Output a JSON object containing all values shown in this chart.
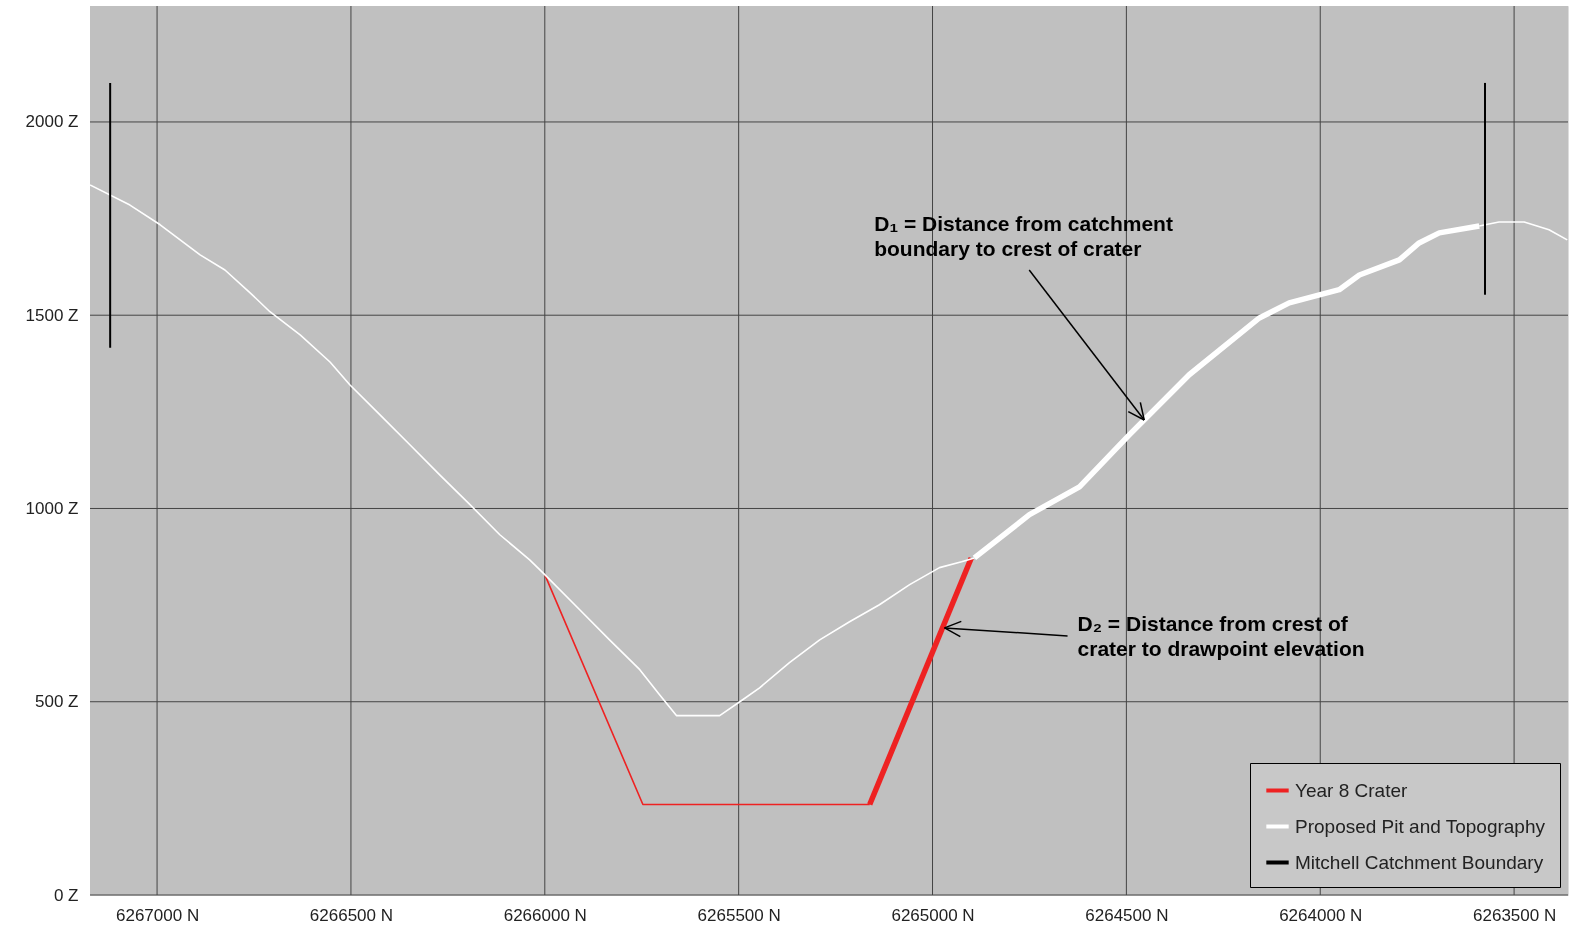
{
  "chart_data": {
    "type": "line",
    "xlim": [
      6267173,
      6263361
    ],
    "ylim": [
      0,
      2300
    ],
    "xticks": [
      {
        "value": 6267000,
        "label": "6267000 N"
      },
      {
        "value": 6266500,
        "label": "6266500 N"
      },
      {
        "value": 6266000,
        "label": "6266000 N"
      },
      {
        "value": 6265500,
        "label": "6265500 N"
      },
      {
        "value": 6265000,
        "label": "6265000 N"
      },
      {
        "value": 6264500,
        "label": "6264500 N"
      },
      {
        "value": 6264000,
        "label": "6264000 N"
      },
      {
        "value": 6263500,
        "label": "6263500 N"
      }
    ],
    "yticks": [
      {
        "value": 0,
        "label": "0 Z"
      },
      {
        "value": 500,
        "label": "500 Z"
      },
      {
        "value": 1000,
        "label": "1000 Z"
      },
      {
        "value": 1500,
        "label": "1500 Z"
      },
      {
        "value": 2000,
        "label": "2000 Z"
      }
    ],
    "grid": true,
    "legend": "bottom right",
    "series": [
      {
        "name": "Year 8 Crater",
        "color": "#ee2222",
        "x": [
          6266000,
          6265747,
          6265162
        ],
        "values": [
          829,
          234,
          234
        ]
      },
      {
        "color": "#ee2222",
        "x": [
          6265162,
          6264900
        ],
        "values": [
          234,
          872
        ]
      },
      {
        "name": "Proposed Pit and Topography",
        "color": "#ffffff",
        "x": [
          6267173,
          6267070,
          6266992,
          6266889,
          6266825,
          6266760,
          6266709,
          6266631,
          6266554,
          6266503,
          6266425,
          6266348,
          6266271,
          6266193,
          6266116,
          6266039,
          6266000,
          6265910,
          6265833,
          6265755,
          6265704,
          6265660,
          6265549,
          6265497,
          6265446,
          6265369,
          6265291,
          6265214,
          6265137,
          6265059,
          6264982,
          6264925,
          6264892,
          6264000,
          6263590,
          6263539,
          6263474,
          6263410,
          6263363
        ],
        "values": [
          1837,
          1785,
          1734,
          1656,
          1617,
          1558,
          1509,
          1449,
          1379,
          1320,
          1242,
          1165,
          1087,
          1010,
          932,
          867,
          829,
          738,
          660,
          583,
          518,
          464,
          464,
          500,
          536,
          601,
          660,
          707,
          751,
          803,
          847,
          862,
          872,
          null,
          1731,
          1741,
          1741,
          1721,
          1695
        ]
      },
      {
        "color": "#ffffff",
        "x": [
          6264892,
          6264750,
          6264621,
          6264492,
          6264338,
          6264157,
          6264080,
          6263951,
          6263899,
          6263796,
          6263745,
          6263693,
          6263590
        ],
        "values": [
          872,
          984,
          1056,
          1191,
          1346,
          1493,
          1532,
          1566,
          1604,
          1643,
          1687,
          1713,
          1731
        ]
      },
      {
        "name": "Mitchell Catchment Boundary",
        "color": "#000000",
        "x": [
          6267121,
          6267121,
          6265000,
          6263575,
          6263575
        ],
        "values": [
          2101,
          1416,
          null,
          2101,
          1553
        ]
      }
    ],
    "annotations": [
      {
        "text": "D₁ = Distance from catchment\nboundary to crest of crater",
        "x": 6264454,
        "y": 1229
      },
      {
        "text": "D₂ = Distance from crest of\ncrater to drawpoint elevation",
        "x": 6264969,
        "y": 691
      }
    ]
  }
}
